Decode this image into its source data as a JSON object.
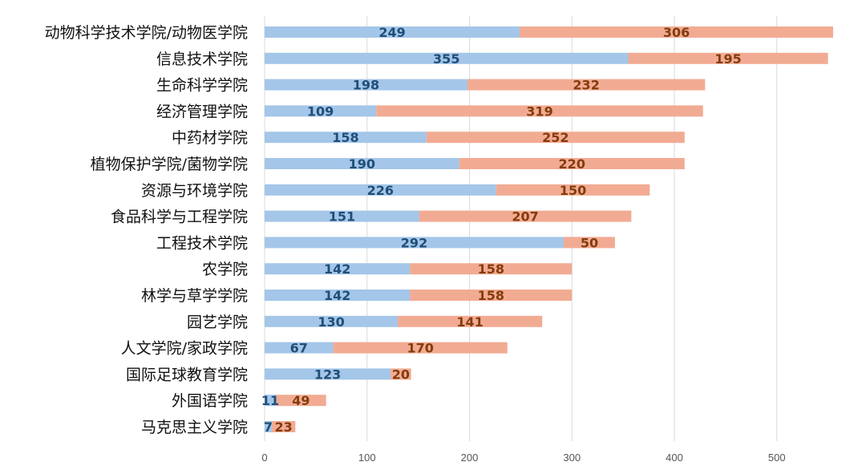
{
  "chart_data": {
    "type": "bar",
    "orientation": "horizontal",
    "stacked": true,
    "categories": [
      "动物科学技术学院/动物医学院",
      "信息技术学院",
      "生命科学学院",
      "经济管理学院",
      "中药材学院",
      "植物保护学院/菌物学院",
      "资源与环境学院",
      "食品科学与工程学院",
      "工程技术学院",
      "农学院",
      "林学与草学学院",
      "园艺学院",
      "人文学院/家政学院",
      "国际足球教育学院",
      "外国语学院",
      "马克思主义学院"
    ],
    "series": [
      {
        "values": [
          249,
          355,
          198,
          109,
          158,
          190,
          226,
          151,
          292,
          142,
          142,
          130,
          67,
          123,
          11,
          7
        ],
        "color": "#a4c6e8",
        "label_color": "#1f4e79"
      },
      {
        "values": [
          306,
          195,
          232,
          319,
          252,
          220,
          150,
          207,
          50,
          158,
          158,
          141,
          170,
          20,
          49,
          23
        ],
        "color": "#f2ab93",
        "label_color": "#843c0c"
      }
    ],
    "xlim": [
      0,
      550
    ],
    "xticks": [
      0,
      100,
      200,
      300,
      400,
      500
    ],
    "xtick_labels": [
      "0",
      "100",
      "200",
      "300",
      "400",
      "500"
    ],
    "grid": true,
    "legend": "none"
  }
}
